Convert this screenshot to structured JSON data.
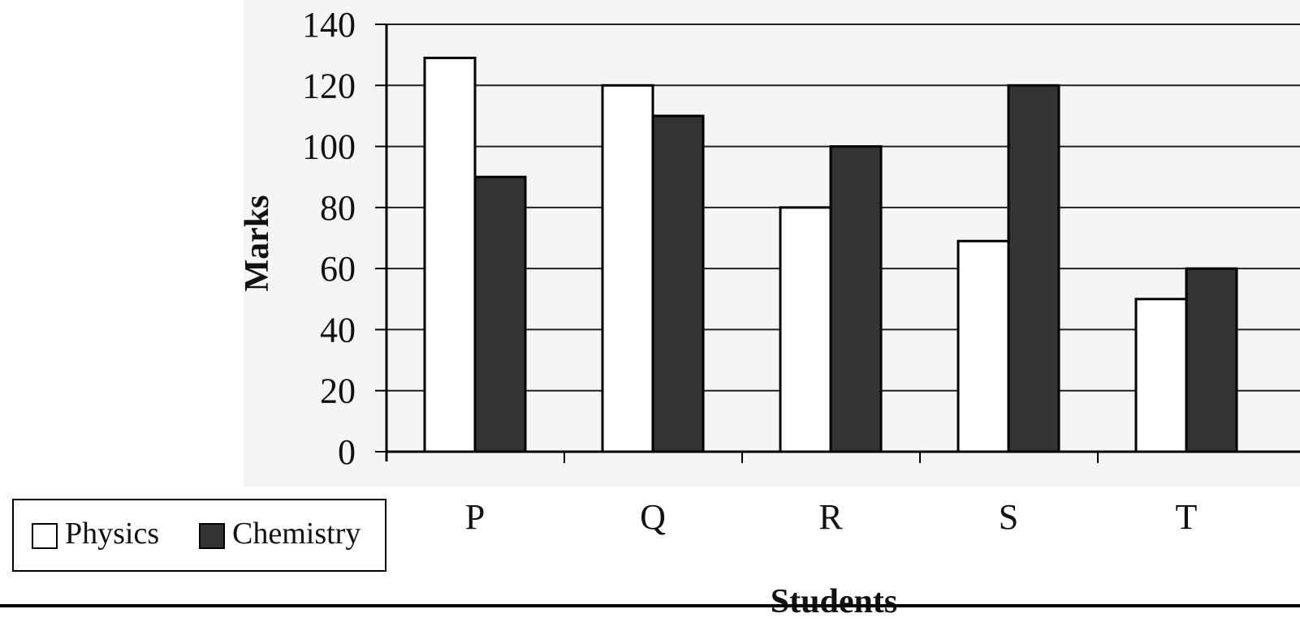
{
  "chart_data": {
    "type": "bar",
    "categories": [
      "P",
      "Q",
      "R",
      "S",
      "T"
    ],
    "series": [
      {
        "name": "Physics",
        "values": [
          129,
          120,
          80,
          69,
          50
        ],
        "color": "#ffffff"
      },
      {
        "name": "Chemistry",
        "values": [
          90,
          110,
          100,
          120,
          60
        ],
        "color": "#333333"
      }
    ],
    "xlabel": "Students",
    "ylabel": "Marks",
    "ylim": [
      0,
      140
    ],
    "yticks": [
      0,
      20,
      40,
      60,
      80,
      100,
      120,
      140
    ],
    "grid": true,
    "legend_position": "bottom-left"
  }
}
